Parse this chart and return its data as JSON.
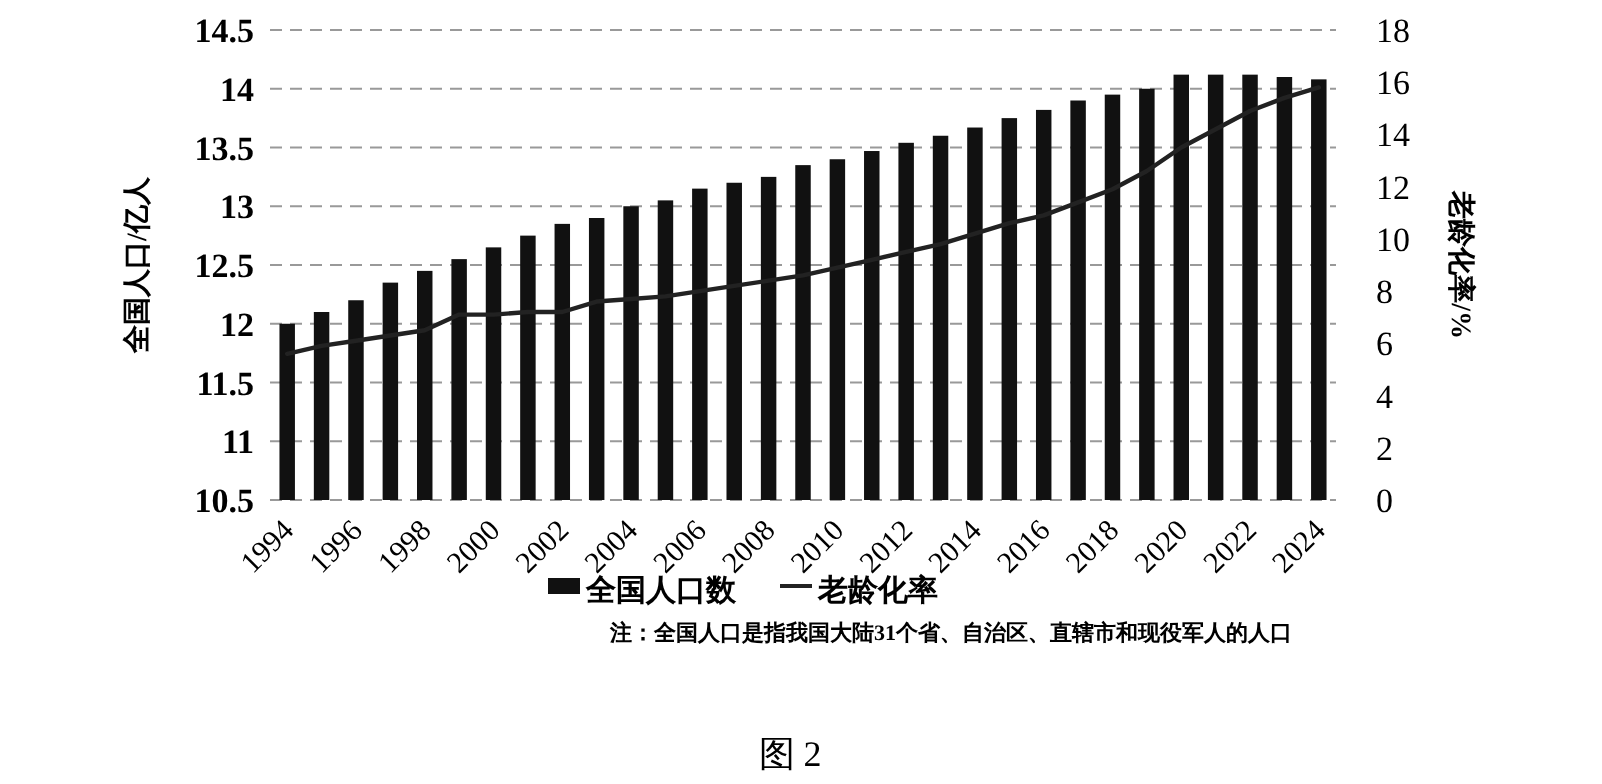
{
  "chart_data": {
    "type": "bar",
    "categories": [
      "1994",
      null,
      "1996",
      null,
      "1998",
      null,
      "2000",
      null,
      "2002",
      null,
      "2004",
      null,
      "2006",
      null,
      "2008",
      null,
      "2010",
      null,
      "2012",
      null,
      "2014",
      null,
      "2016",
      null,
      "2018",
      null,
      "2020",
      null,
      "2022",
      null,
      "2024"
    ],
    "series": [
      {
        "name": "全国人口数",
        "color": "#111111",
        "values": [
          12.0,
          12.1,
          12.2,
          12.35,
          12.45,
          12.55,
          12.65,
          12.75,
          12.85,
          12.9,
          13.0,
          13.05,
          13.15,
          13.2,
          13.25,
          13.35,
          13.4,
          13.47,
          13.54,
          13.6,
          13.67,
          13.75,
          13.82,
          13.9,
          13.95,
          14.0,
          14.12,
          14.12,
          14.12,
          14.1,
          14.08
        ]
      },
      {
        "name": "老龄化率",
        "type": "line",
        "axis": "y2",
        "color": "#222222",
        "values": [
          5.6,
          5.9,
          6.1,
          6.3,
          6.5,
          7.1,
          7.1,
          7.2,
          7.2,
          7.6,
          7.7,
          7.8,
          8.0,
          8.2,
          8.4,
          8.6,
          8.9,
          9.2,
          9.5,
          9.8,
          10.2,
          10.6,
          10.9,
          11.4,
          11.9,
          12.6,
          13.5,
          14.2,
          14.9,
          15.4,
          15.8
        ]
      }
    ],
    "ylabel": "全国人口/亿人",
    "y2label": "老龄化率/%",
    "ylim": [
      10.5,
      14.5
    ],
    "yticks": [
      10.5,
      11,
      11.5,
      12,
      12.5,
      13,
      13.5,
      14,
      14.5
    ],
    "y2lim": [
      0,
      18
    ],
    "y2ticks": [
      0,
      2,
      4,
      6,
      8,
      10,
      12,
      14,
      16,
      18
    ],
    "grid": "y",
    "legend": "bottom",
    "annotations": [
      "注：全国人口是指我国大陆31个省、自治区、直辖市和现役军人的人口",
      "图 2"
    ]
  }
}
